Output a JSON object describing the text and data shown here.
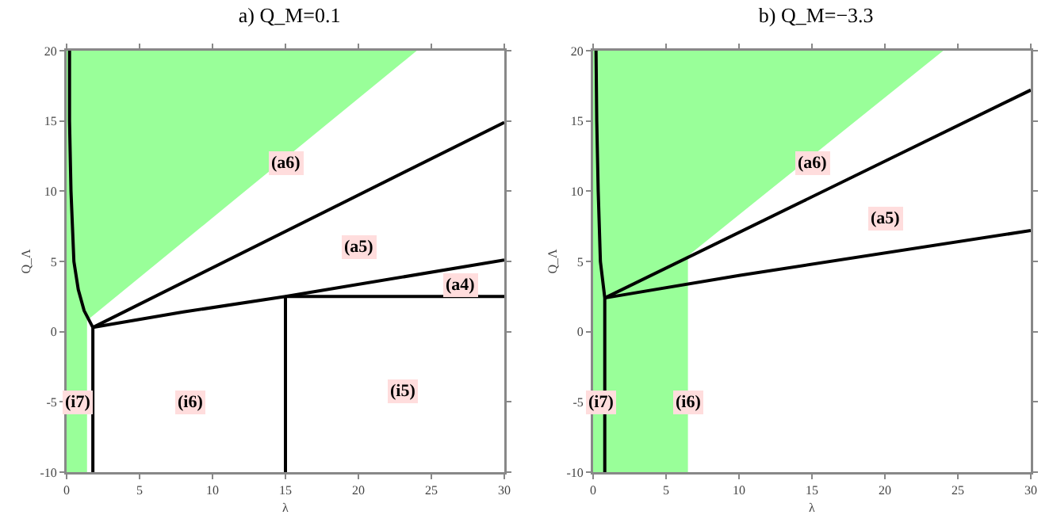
{
  "chart_data": [
    {
      "type": "line",
      "title": "a) Q_M=0.1",
      "xlabel": "λ",
      "ylabel": "Q_Λ",
      "xlim": [
        0,
        30
      ],
      "ylim": [
        -10,
        20
      ],
      "xticks": [
        0,
        5,
        10,
        15,
        20,
        25,
        30
      ],
      "yticks": [
        -10,
        -5,
        0,
        5,
        10,
        15,
        20
      ],
      "line_style": "solid",
      "series": [
        {
          "type": "area",
          "color": "#99ff99",
          "x": [
            0,
            1.4,
            1.4,
            24,
            0,
            0
          ],
          "values": [
            -10,
            -10,
            0.8,
            20,
            20,
            -10
          ]
        },
        {
          "color": "#000000",
          "x": [
            0.2,
            0.2,
            0.3,
            0.5,
            0.8,
            1.2,
            1.8
          ],
          "values": [
            20,
            15,
            10,
            5,
            3,
            1.5,
            0.3
          ]
        },
        {
          "color": "#000000",
          "x": [
            1.8,
            1.8
          ],
          "values": [
            0.3,
            -10
          ]
        },
        {
          "color": "#000000",
          "x": [
            1.8,
            30
          ],
          "values": [
            0.3,
            14.9
          ]
        },
        {
          "color": "#000000",
          "x": [
            1.8,
            8,
            15,
            30
          ],
          "values": [
            0.3,
            1.4,
            2.5,
            5.1
          ]
        },
        {
          "color": "#000000",
          "x": [
            15,
            30
          ],
          "values": [
            2.5,
            2.5
          ]
        },
        {
          "color": "#000000",
          "x": [
            15,
            15
          ],
          "values": [
            2.5,
            -10
          ]
        }
      ],
      "annotations": [
        {
          "text": "(a6)",
          "x": 15,
          "y": 12
        },
        {
          "text": "(a5)",
          "x": 20,
          "y": 6
        },
        {
          "text": "(a4)",
          "x": 27,
          "y": 3.3
        },
        {
          "text": "(i5)",
          "x": 23,
          "y": -4.2
        },
        {
          "text": "(i6)",
          "x": 8.5,
          "y": -5
        },
        {
          "text": "(i7)",
          "x": 0.8,
          "y": -5
        }
      ]
    },
    {
      "type": "line",
      "title": "b) Q_M=−3.3",
      "xlabel": "λ",
      "ylabel": "Q_Λ",
      "xlim": [
        0,
        30
      ],
      "ylim": [
        -10,
        20
      ],
      "xticks": [
        0,
        5,
        10,
        15,
        20,
        25,
        30
      ],
      "yticks": [
        -10,
        -5,
        0,
        5,
        10,
        15,
        20
      ],
      "line_style": "solid",
      "series": [
        {
          "type": "area",
          "color": "#99ff99",
          "x": [
            0,
            6.5,
            6.5,
            24,
            0,
            0
          ],
          "values": [
            -10,
            -10,
            5.4,
            20,
            20,
            -10
          ]
        },
        {
          "color": "#000000",
          "x": [
            0.2,
            0.25,
            0.35,
            0.5,
            0.8,
            0.8
          ],
          "values": [
            20,
            15,
            10,
            5,
            2.4,
            -10
          ]
        },
        {
          "color": "#000000",
          "x": [
            0.8,
            30
          ],
          "values": [
            2.4,
            17.2
          ]
        },
        {
          "color": "#000000",
          "x": [
            0.8,
            10,
            30
          ],
          "values": [
            2.4,
            4.0,
            7.2
          ]
        }
      ],
      "annotations": [
        {
          "text": "(a6)",
          "x": 15,
          "y": 12
        },
        {
          "text": "(a5)",
          "x": 20,
          "y": 8
        },
        {
          "text": "(i7)",
          "x": 0.5,
          "y": -5
        },
        {
          "text": "(i6)",
          "x": 6.5,
          "y": -5
        }
      ]
    }
  ]
}
